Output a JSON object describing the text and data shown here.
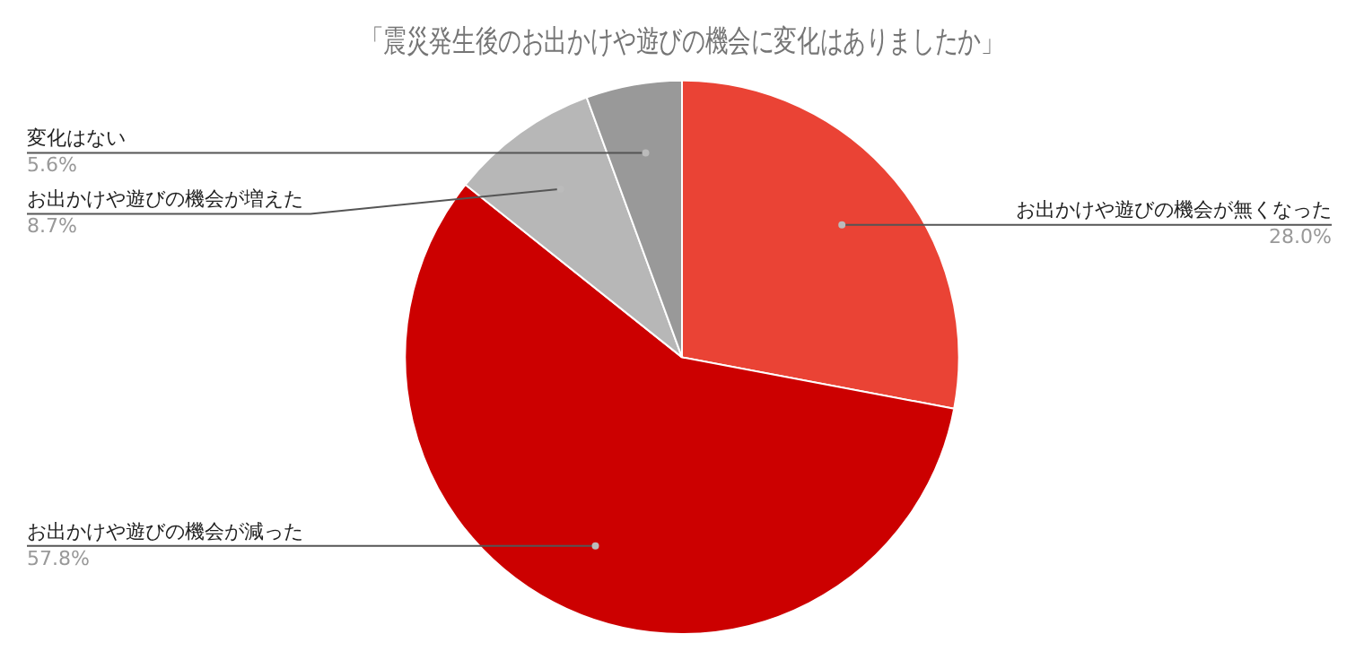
{
  "chart_data": {
    "type": "pie",
    "title": "「震災発生後のお出かけや遊びの機会に変化はありましたか」",
    "categories": [
      "お出かけや遊びの機会が無くなった",
      "お出かけや遊びの機会が減った",
      "お出かけや遊びの機会が増えた",
      "変化はない"
    ],
    "values": [
      28.0,
      57.8,
      8.7,
      5.6
    ],
    "colors": [
      "#ea4335",
      "#cc0000",
      "#b7b7b7",
      "#999999"
    ],
    "value_labels": [
      "28.0%",
      "57.8%",
      "8.7%",
      "5.6%"
    ],
    "legend": false
  }
}
